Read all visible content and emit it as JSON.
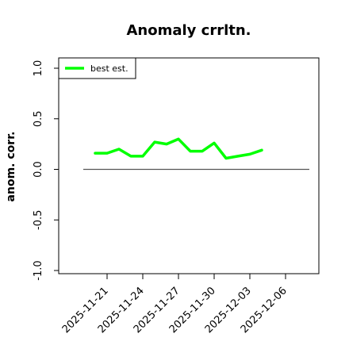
{
  "chart_data": {
    "type": "line",
    "title": "Anomaly crrltn.",
    "xlabel": "",
    "ylabel": "anom. corr.",
    "ylim": [
      -1.0,
      1.0
    ],
    "y_ticks": [
      -1.0,
      -0.5,
      0.0,
      0.5,
      1.0
    ],
    "y_tick_labels": [
      "-1.0",
      "-0.5",
      "0.0",
      "0.5",
      "1.0"
    ],
    "x_tick_dates": [
      "2025-11-21",
      "2025-11-24",
      "2025-11-27",
      "2025-11-30",
      "2025-12-03",
      "2025-12-06"
    ],
    "x_tick_labels": [
      "2025-11-21",
      "2025-11-24",
      "2025-11-27",
      "2025-11-30",
      "2025-12-03",
      "2025-12-06"
    ],
    "x_range": [
      "2025-11-18",
      "2025-12-08"
    ],
    "reference_line": 0.0,
    "reference_range": [
      "2025-11-19",
      "2025-12-08"
    ],
    "grid": false,
    "legend_position": "top-left",
    "series": [
      {
        "name": "best est.",
        "color": "#00ff00",
        "x": [
          "2025-11-20",
          "2025-11-21",
          "2025-11-22",
          "2025-11-23",
          "2025-11-24",
          "2025-11-25",
          "2025-11-26",
          "2025-11-27",
          "2025-11-28",
          "2025-11-29",
          "2025-11-30",
          "2025-12-01",
          "2025-12-02",
          "2025-12-03",
          "2025-12-04"
        ],
        "y": [
          0.16,
          0.16,
          0.2,
          0.13,
          0.13,
          0.27,
          0.25,
          0.3,
          0.18,
          0.18,
          0.26,
          0.11,
          0.13,
          0.15,
          0.19
        ]
      }
    ]
  }
}
